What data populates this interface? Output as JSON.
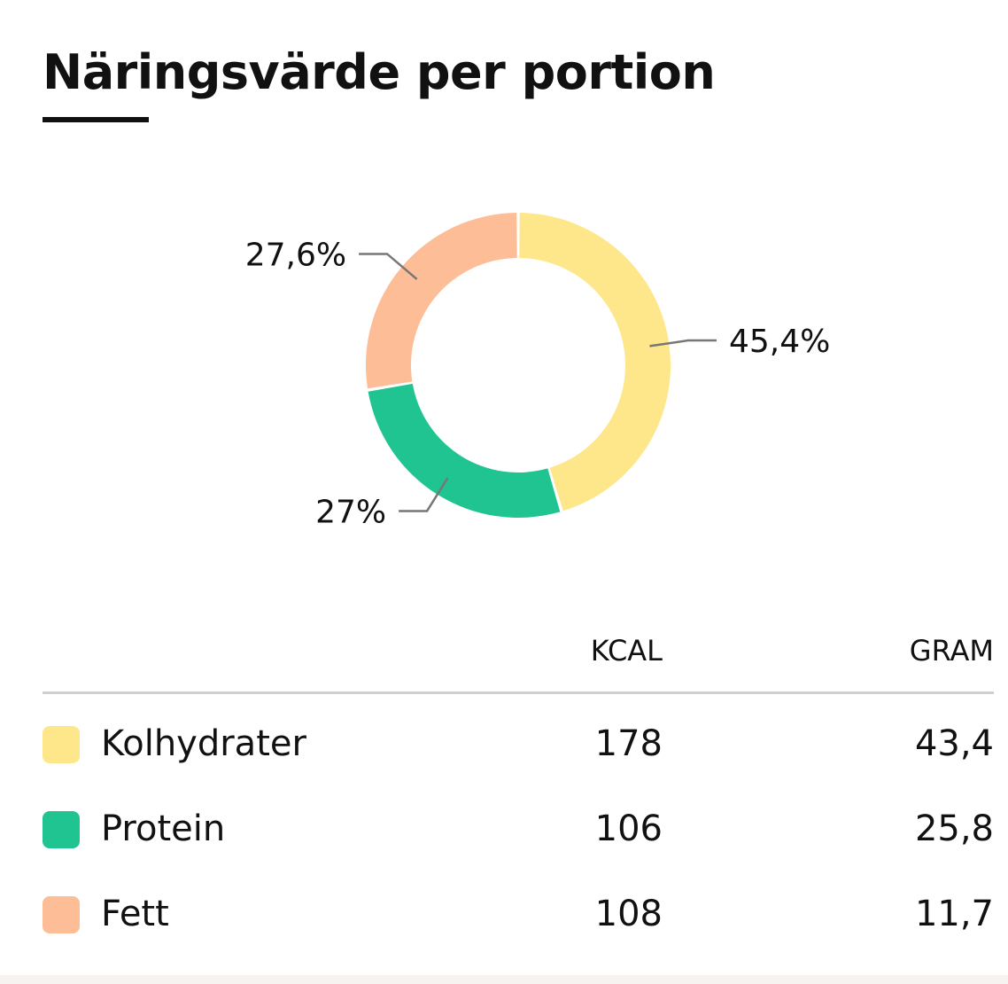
{
  "title": "Näringsvärde per portion",
  "colors": {
    "kolhydrater": "#fee78b",
    "protein": "#20c491",
    "fett": "#fdbd96"
  },
  "chart_data": {
    "type": "pie",
    "donut": true,
    "categories": [
      "Kolhydrater",
      "Protein",
      "Fett"
    ],
    "values": [
      45.4,
      27,
      27.6
    ],
    "labels": [
      "45,4%",
      "27%",
      "27,6%"
    ],
    "colors": [
      "#fee78b",
      "#20c491",
      "#fdbd96"
    ]
  },
  "table": {
    "headers": {
      "kcal": "KCAL",
      "gram": "GRAM"
    },
    "rows": [
      {
        "name": "Kolhydrater",
        "kcal": "178",
        "gram": "43,4"
      },
      {
        "name": "Protein",
        "kcal": "106",
        "gram": "25,8"
      },
      {
        "name": "Fett",
        "kcal": "108",
        "gram": "11,7"
      }
    ]
  }
}
